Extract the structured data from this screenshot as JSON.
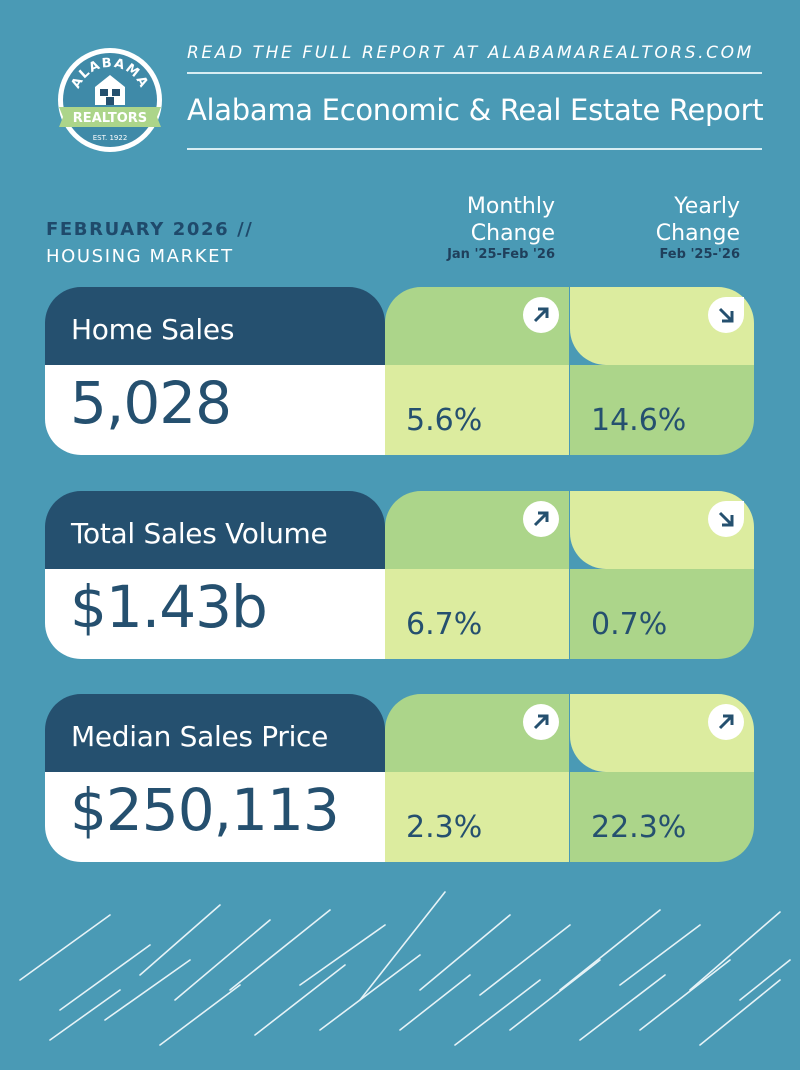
{
  "header": {
    "logo_text": "ALABAMA REALTORS EST. 1922",
    "cta": "READ THE FULL REPORT AT ALABAMAREALTORS.COM",
    "title": "Alabama Economic & Real Estate Report"
  },
  "section": {
    "period": "FEBRUARY 2026 //",
    "subtitle": "HOUSING MARKET"
  },
  "columns": {
    "monthly": {
      "line1": "Monthly",
      "line2": "Change",
      "range": "Jan '25-Feb '26"
    },
    "yearly": {
      "line1": "Yearly",
      "line2": "Change",
      "range": "Feb '25-'26"
    }
  },
  "metrics": [
    {
      "label": "Home Sales",
      "value": "5,028",
      "monthly": "5.6%",
      "monthly_dir": "up",
      "yearly": "14.6%",
      "yearly_dir": "down"
    },
    {
      "label": "Total Sales Volume",
      "value": "$1.43b",
      "monthly": "6.7%",
      "monthly_dir": "up",
      "yearly": "0.7%",
      "yearly_dir": "down"
    },
    {
      "label": "Median Sales Price",
      "value": "$250,113",
      "monthly": "2.3%",
      "monthly_dir": "up",
      "yearly": "22.3%",
      "yearly_dir": "up"
    }
  ],
  "colors": {
    "background": "#4a9ab5",
    "navy": "#25506f",
    "light_green": "#dcec9f",
    "mid_green": "#acd58a"
  },
  "icons": {
    "up": "arrow-up-right-icon",
    "down": "arrow-down-right-icon"
  }
}
